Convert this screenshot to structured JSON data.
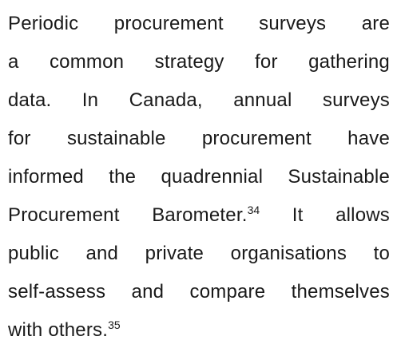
{
  "paragraph": {
    "lines": [
      [
        {
          "text": "Periodic procurement surveys are"
        }
      ],
      [
        {
          "text": "a common strategy for gathering"
        }
      ],
      [
        {
          "text": "data. In Canada, annual surveys"
        }
      ],
      [
        {
          "text": "for sustainable procurement have"
        }
      ],
      [
        {
          "text": "informed the quadrennial Sustainable"
        }
      ],
      [
        {
          "text": "Procurement Barometer."
        },
        {
          "sup": "34"
        },
        {
          "text": " It allows"
        }
      ],
      [
        {
          "text": "public and private organisations to"
        }
      ],
      [
        {
          "text": "self-assess and compare themselves"
        }
      ],
      [
        {
          "text": "with others."
        },
        {
          "sup": "35"
        }
      ]
    ]
  }
}
